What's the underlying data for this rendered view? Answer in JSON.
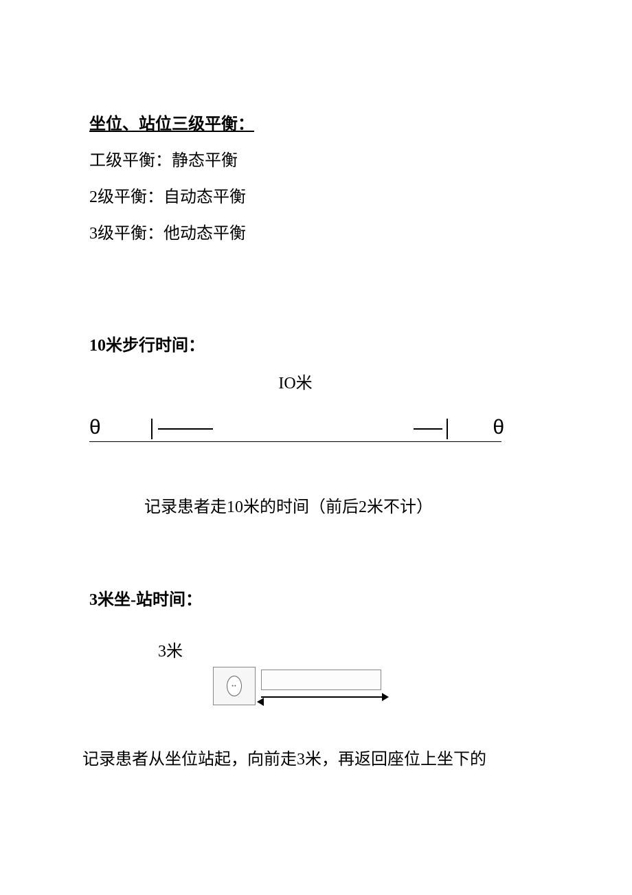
{
  "balance": {
    "heading": "坐位、站位三级平衡：",
    "line1": "工级平衡：静态平衡",
    "line2": "2级平衡：自动态平衡",
    "line3": "3级平衡：他动态平衡"
  },
  "walk10m": {
    "heading": "10米步行时间：",
    "diagram": {
      "top_label": "IO米",
      "theta_left": "θ",
      "theta_right": "θ",
      "line_color": "#000000"
    },
    "caption": "记录患者走10米的时间（前后2米不计）"
  },
  "sitstand3m": {
    "heading": "3米坐-站时间：",
    "label": "3米",
    "diagram": {
      "chair_border": "#888888",
      "rect_border": "#888888",
      "arrow_color": "#000000"
    },
    "caption": "记录患者从坐位站起，向前走3米，再返回座位上坐下的"
  },
  "style": {
    "background_color": "#ffffff",
    "text_color": "#000000",
    "body_fontsize": 24,
    "heading_fontsize": 24
  }
}
